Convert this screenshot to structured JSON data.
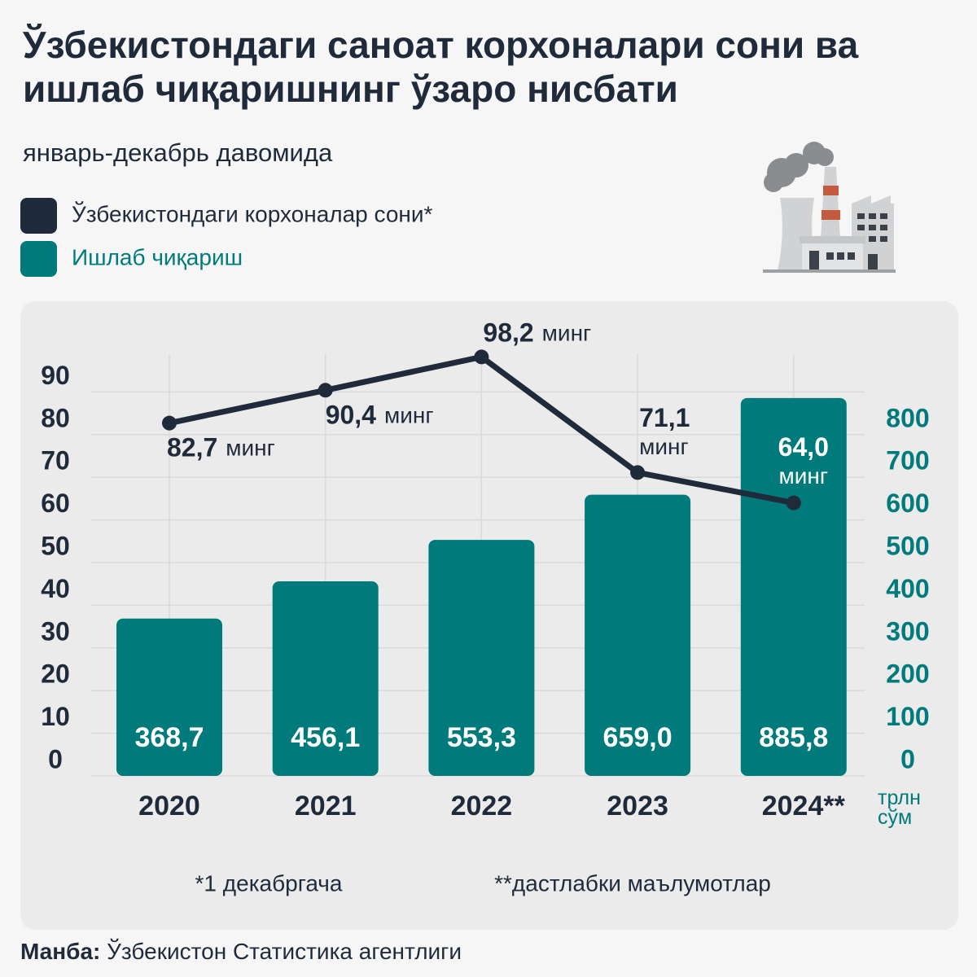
{
  "chart_data": {
    "type": "bar",
    "title": "Ўзбекистондаги саноат корхоналари сони ва ишлаб чиқаришнинг ўзаро нисбати",
    "subtitle": "январь-декабрь давомида",
    "categories": [
      "2020",
      "2021",
      "2022",
      "2023",
      "2024**"
    ],
    "series": [
      {
        "name": "Ўзбекистондаги корхоналар сони*",
        "type": "line",
        "color": "#1f2a3a",
        "values": [
          82.7,
          90.4,
          98.2,
          71.1,
          64.0
        ],
        "value_labels": [
          "82,7",
          "90,4",
          "98,2",
          "71,1",
          "64,0"
        ],
        "unit": "минг"
      },
      {
        "name": "Ишлаб чиқариш",
        "type": "bar",
        "axis": "y2",
        "color": "#007a7a",
        "values": [
          368.7,
          456.1,
          553.3,
          659.0,
          885.8
        ],
        "value_labels": [
          "368,7",
          "456,1",
          "553,3",
          "659,0",
          "885,8"
        ]
      }
    ],
    "ylim": [
      0,
      100
    ],
    "yticks": [
      0,
      10,
      20,
      30,
      40,
      50,
      60,
      70,
      80,
      90
    ],
    "y2lim": [
      0,
      1000
    ],
    "y2ticks": [
      0,
      100,
      200,
      300,
      400,
      500,
      600,
      700,
      800
    ],
    "y2label": "трлн сўм",
    "grid": true,
    "footnotes": [
      "*1 декабргача",
      "**дастлабки маълумотлар"
    ],
    "source": {
      "label": "Манба:",
      "text": "Ўзбекистон Статистика агентлиги"
    }
  }
}
